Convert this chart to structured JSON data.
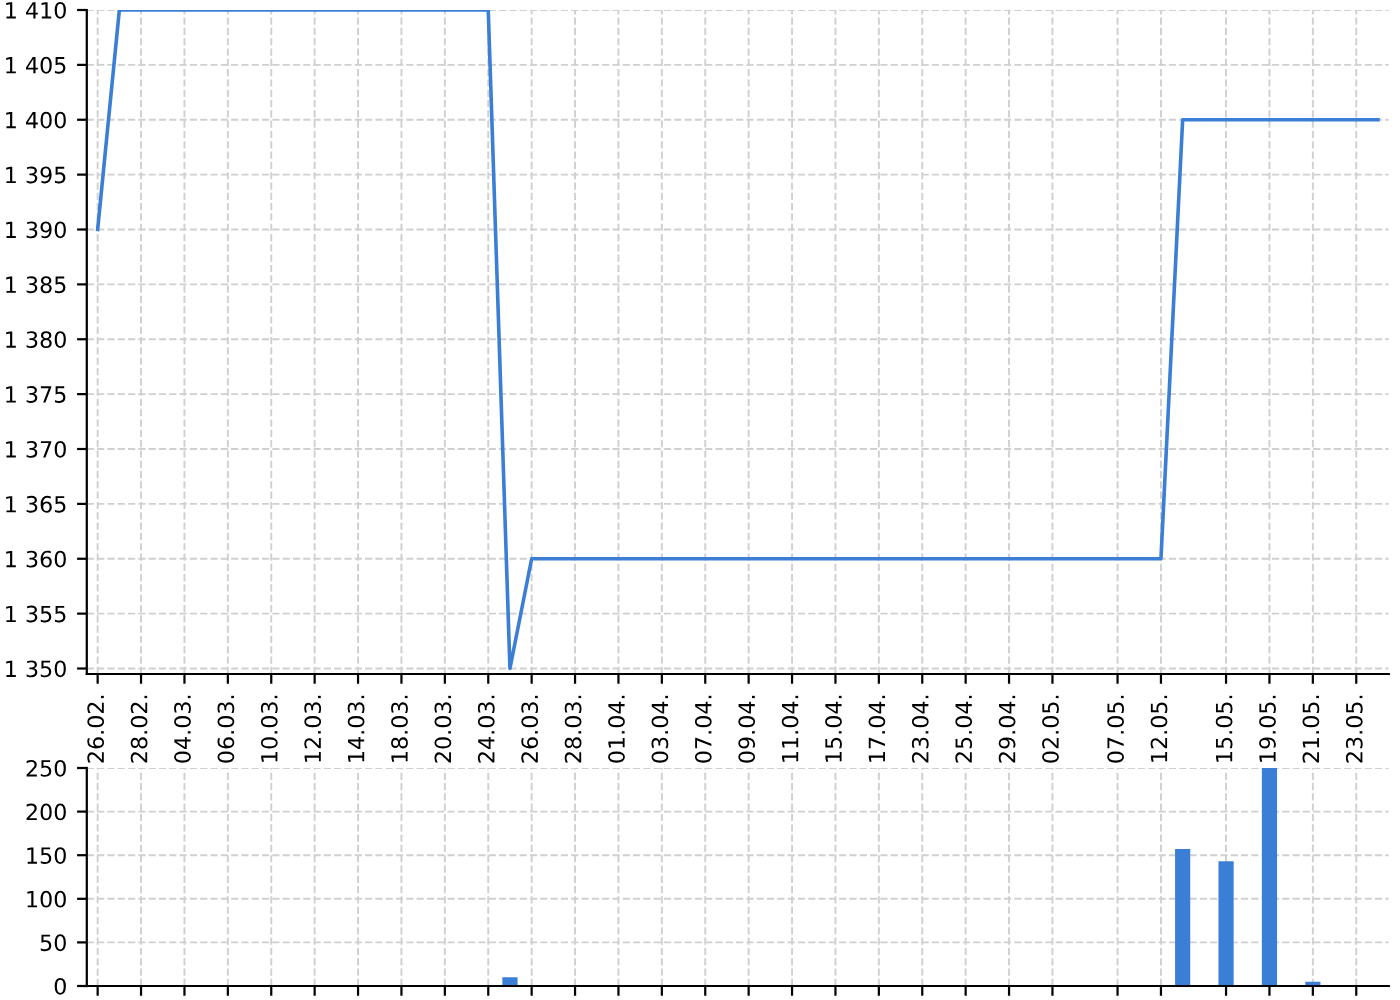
{
  "chart_data": [
    {
      "type": "line",
      "color": "#3a7fd5",
      "grid": true,
      "marker": "none",
      "line_style": "solid",
      "categories": [
        "26.02.",
        null,
        "28.02.",
        null,
        "04.03.",
        null,
        "06.03.",
        null,
        "10.03.",
        null,
        "12.03.",
        null,
        "14.03.",
        null,
        "18.03.",
        null,
        "20.03.",
        null,
        "24.03.",
        null,
        "26.03.",
        null,
        "28.03.",
        null,
        "01.04.",
        null,
        "03.04.",
        null,
        "07.04.",
        null,
        "09.04.",
        null,
        "11.04.",
        null,
        "15.04.",
        null,
        "17.04.",
        null,
        "23.04.",
        null,
        "25.04.",
        null,
        "29.04.",
        null,
        "02.05.",
        null,
        null,
        "07.05.",
        null,
        "12.05.",
        null,
        null,
        "15.05.",
        null,
        "19.05.",
        null,
        "21.05.",
        null,
        "23.05.",
        null
      ],
      "values": [
        1390,
        1410,
        1410,
        1410,
        1410,
        1410,
        1410,
        1410,
        1410,
        1410,
        1410,
        1410,
        1410,
        1410,
        1410,
        1410,
        1410,
        1410,
        1410,
        1350,
        1360,
        1360,
        1360,
        1360,
        1360,
        1360,
        1360,
        1360,
        1360,
        1360,
        1360,
        1360,
        1360,
        1360,
        1360,
        1360,
        1360,
        1360,
        1360,
        1360,
        1360,
        1360,
        1360,
        1360,
        1360,
        1360,
        1360,
        1360,
        1360,
        1360,
        1400,
        1400,
        1400,
        1400,
        1400,
        1400,
        1400,
        1400,
        1400,
        1400
      ],
      "ylim": [
        1349.5,
        1410
      ],
      "yticks": [
        {
          "value": 1350,
          "label": "1 350"
        },
        {
          "value": 1355,
          "label": "1 355"
        },
        {
          "value": 1360,
          "label": "1 360"
        },
        {
          "value": 1365,
          "label": "1 365"
        },
        {
          "value": 1370,
          "label": "1 370"
        },
        {
          "value": 1375,
          "label": "1 375"
        },
        {
          "value": 1380,
          "label": "1 380"
        },
        {
          "value": 1385,
          "label": "1 385"
        },
        {
          "value": 1390,
          "label": "1 390"
        },
        {
          "value": 1395,
          "label": "1 395"
        },
        {
          "value": 1400,
          "label": "1 400"
        },
        {
          "value": 1405,
          "label": "1 405"
        },
        {
          "value": 1410,
          "label": "1 410"
        }
      ]
    },
    {
      "type": "bar",
      "color": "#3a7fd5",
      "grid": true,
      "tick_labels": "y",
      "categories": [
        "26.02.",
        null,
        "28.02.",
        null,
        "04.03.",
        null,
        "06.03.",
        null,
        "10.03.",
        null,
        "12.03.",
        null,
        "14.03.",
        null,
        "18.03.",
        null,
        "20.03.",
        null,
        "24.03.",
        null,
        "26.03.",
        null,
        "28.03.",
        null,
        "01.04.",
        null,
        "03.04.",
        null,
        "07.04.",
        null,
        "09.04.",
        null,
        "11.04.",
        null,
        "15.04.",
        null,
        "17.04.",
        null,
        "23.04.",
        null,
        "25.04.",
        null,
        "29.04.",
        null,
        "02.05.",
        null,
        null,
        "07.05.",
        null,
        "12.05.",
        null,
        null,
        "15.05.",
        null,
        "19.05.",
        null,
        "21.05.",
        null,
        "23.05.",
        null
      ],
      "values": [
        0,
        0,
        0,
        0,
        0,
        0,
        0,
        0,
        0,
        0,
        0,
        0,
        0,
        0,
        0,
        0,
        0,
        0,
        0,
        10,
        0,
        0,
        0,
        0,
        0,
        0,
        0,
        0,
        0,
        0,
        0,
        0,
        0,
        0,
        0,
        0,
        0,
        0,
        0,
        0,
        0,
        0,
        0,
        0,
        0,
        0,
        0,
        0,
        0,
        0,
        157,
        0,
        143,
        0,
        250,
        0,
        5,
        0,
        0,
        0
      ],
      "ylim": [
        0,
        250
      ],
      "yticks": [
        0,
        50,
        100,
        150,
        200,
        250
      ]
    }
  ]
}
